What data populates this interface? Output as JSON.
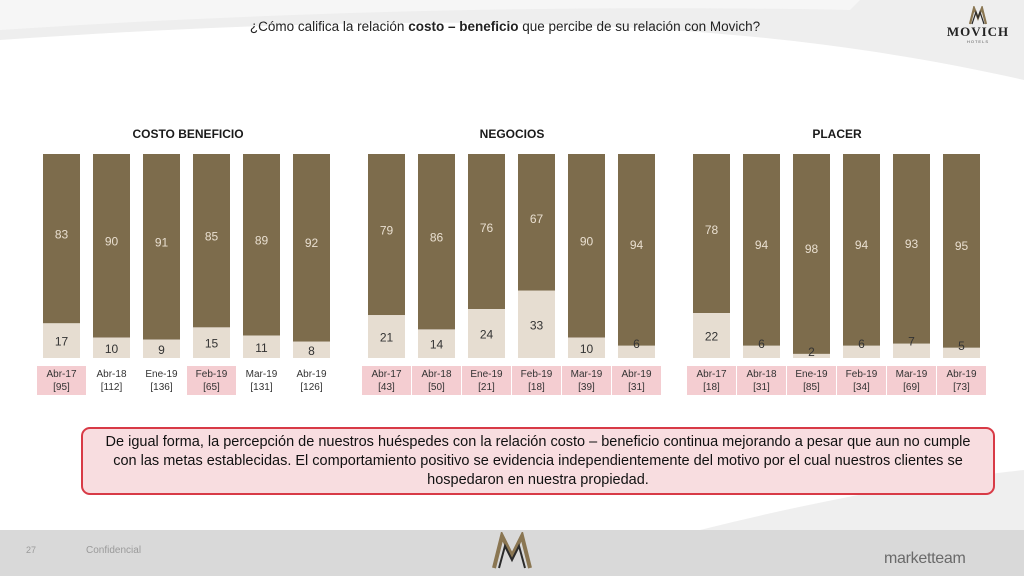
{
  "question": {
    "before": "¿Cómo califica la relación ",
    "bold": "costo – beneficio",
    "after": " que percibe de su relación con Movich?"
  },
  "brand": {
    "name": "MOVICH",
    "sub": "HOTELS"
  },
  "colors": {
    "positive": "#7d6c4c",
    "negative": "#e6ddd1",
    "highlight_label": "#f4cdd1",
    "text_light": "#e9dfd0",
    "callout_border": "#d83a46"
  },
  "chart_data": [
    {
      "type": "bar",
      "stacked": true,
      "title": "COSTO BENEFICIO",
      "categories": [
        "Abr-17",
        "Abr-18",
        "Ene-19",
        "Feb-19",
        "Mar-19",
        "Abr-19"
      ],
      "bases": [
        "[95]",
        "[112]",
        "[136]",
        "[65]",
        "[131]",
        "[126]"
      ],
      "highlighted": [
        true,
        false,
        false,
        true,
        false,
        false
      ],
      "series": [
        {
          "values": [
            17,
            10,
            9,
            15,
            11,
            8
          ]
        },
        {
          "values": [
            83,
            90,
            91,
            85,
            89,
            92
          ]
        }
      ]
    },
    {
      "type": "bar",
      "stacked": true,
      "title": "NEGOCIOS",
      "categories": [
        "Abr-17",
        "Abr-18",
        "Ene-19",
        "Feb-19",
        "Mar-19",
        "Abr-19"
      ],
      "bases": [
        "[43]",
        "[50]",
        "[21]",
        "[18]",
        "[39]",
        "[31]"
      ],
      "highlighted": [
        true,
        true,
        true,
        true,
        true,
        true
      ],
      "series": [
        {
          "values": [
            21,
            14,
            24,
            33,
            10,
            6
          ]
        },
        {
          "values": [
            79,
            86,
            76,
            67,
            90,
            94
          ]
        }
      ]
    },
    {
      "type": "bar",
      "stacked": true,
      "title": "PLACER",
      "categories": [
        "Abr-17",
        "Abr-18",
        "Ene-19",
        "Feb-19",
        "Mar-19",
        "Abr-19"
      ],
      "bases": [
        "[18]",
        "[31]",
        "[85]",
        "[34]",
        "[69]",
        "[73]"
      ],
      "highlighted": [
        true,
        true,
        true,
        true,
        true,
        true
      ],
      "series": [
        {
          "values": [
            22,
            6,
            2,
            6,
            7,
            5
          ]
        },
        {
          "values": [
            78,
            94,
            98,
            94,
            93,
            95
          ]
        }
      ]
    }
  ],
  "callout": "De igual forma, la percepción de nuestros huéspedes con la relación costo – beneficio continua mejorando a pesar que aun no cumple con las metas establecidas. El comportamiento positivo se evidencia independientemente del motivo por el cual nuestros clientes se hospedaron en nuestra propiedad.",
  "footer": {
    "page": "27",
    "classification": "Confidencial",
    "agency": "marketteam"
  }
}
